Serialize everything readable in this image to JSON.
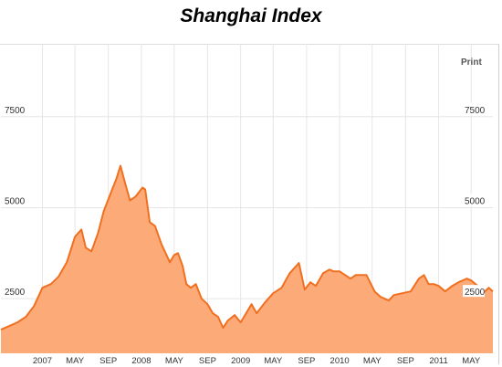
{
  "title": "Shanghai Index",
  "print_label": "Print",
  "chart_data": {
    "type": "area",
    "title": "Shanghai Index",
    "xlabel": "",
    "ylabel": "",
    "ylim": [
      1000,
      9500
    ],
    "xlim": [
      "2006-08-01",
      "2011-07-20"
    ],
    "grid": true,
    "legend": "none",
    "y_ticks_left": [
      "7500",
      "5000",
      "2500"
    ],
    "y_ticks_right": [
      "7500",
      "5000",
      "2500"
    ],
    "x_ticks": [
      {
        "label": "2007",
        "date": "2007-01-01"
      },
      {
        "label": "MAY",
        "date": "2007-05-01"
      },
      {
        "label": "SEP",
        "date": "2007-09-01"
      },
      {
        "label": "2008",
        "date": "2008-01-01"
      },
      {
        "label": "MAY",
        "date": "2008-05-01"
      },
      {
        "label": "SEP",
        "date": "2008-09-01"
      },
      {
        "label": "2009",
        "date": "2009-01-01"
      },
      {
        "label": "MAY",
        "date": "2009-05-01"
      },
      {
        "label": "SEP",
        "date": "2009-09-01"
      },
      {
        "label": "2010",
        "date": "2010-01-01"
      },
      {
        "label": "MAY",
        "date": "2010-05-01"
      },
      {
        "label": "SEP",
        "date": "2010-09-01"
      },
      {
        "label": "2011",
        "date": "2011-01-01"
      },
      {
        "label": "MAY",
        "date": "2011-05-01"
      }
    ],
    "colors": {
      "line": "#f07020",
      "fill": "#fcaa78",
      "grid": "#e6e6e6"
    },
    "series": [
      {
        "points": [
          [
            "2006-08-01",
            1650
          ],
          [
            "2006-09-01",
            1750
          ],
          [
            "2006-10-01",
            1850
          ],
          [
            "2006-11-01",
            2000
          ],
          [
            "2006-12-01",
            2300
          ],
          [
            "2007-01-01",
            2800
          ],
          [
            "2007-02-01",
            2900
          ],
          [
            "2007-03-01",
            3100
          ],
          [
            "2007-04-01",
            3500
          ],
          [
            "2007-05-01",
            4200
          ],
          [
            "2007-05-25",
            4400
          ],
          [
            "2007-06-10",
            3900
          ],
          [
            "2007-07-01",
            3800
          ],
          [
            "2007-07-25",
            4300
          ],
          [
            "2007-08-15",
            4900
          ],
          [
            "2007-09-10",
            5400
          ],
          [
            "2007-10-01",
            5800
          ],
          [
            "2007-10-16",
            6150
          ],
          [
            "2007-11-01",
            5700
          ],
          [
            "2007-11-20",
            5200
          ],
          [
            "2007-12-10",
            5300
          ],
          [
            "2008-01-05",
            5550
          ],
          [
            "2008-01-15",
            5500
          ],
          [
            "2008-02-01",
            4600
          ],
          [
            "2008-02-20",
            4500
          ],
          [
            "2008-03-15",
            4000
          ],
          [
            "2008-04-15",
            3500
          ],
          [
            "2008-05-01",
            3700
          ],
          [
            "2008-05-15",
            3750
          ],
          [
            "2008-06-01",
            3400
          ],
          [
            "2008-06-15",
            2900
          ],
          [
            "2008-07-01",
            2800
          ],
          [
            "2008-07-20",
            2900
          ],
          [
            "2008-08-10",
            2500
          ],
          [
            "2008-09-01",
            2350
          ],
          [
            "2008-09-20",
            2100
          ],
          [
            "2008-10-10",
            2000
          ],
          [
            "2008-10-28",
            1700
          ],
          [
            "2008-11-15",
            1900
          ],
          [
            "2008-12-10",
            2050
          ],
          [
            "2009-01-01",
            1850
          ],
          [
            "2009-02-10",
            2350
          ],
          [
            "2009-03-01",
            2100
          ],
          [
            "2009-04-01",
            2400
          ],
          [
            "2009-05-01",
            2650
          ],
          [
            "2009-06-01",
            2800
          ],
          [
            "2009-07-01",
            3200
          ],
          [
            "2009-08-04",
            3480
          ],
          [
            "2009-08-25",
            2750
          ],
          [
            "2009-09-15",
            2950
          ],
          [
            "2009-10-05",
            2850
          ],
          [
            "2009-11-01",
            3200
          ],
          [
            "2009-11-25",
            3300
          ],
          [
            "2009-12-10",
            3250
          ],
          [
            "2010-01-01",
            3250
          ],
          [
            "2010-02-10",
            3050
          ],
          [
            "2010-03-01",
            3150
          ],
          [
            "2010-04-10",
            3150
          ],
          [
            "2010-05-10",
            2700
          ],
          [
            "2010-06-01",
            2550
          ],
          [
            "2010-07-01",
            2450
          ],
          [
            "2010-07-20",
            2600
          ],
          [
            "2010-08-20",
            2650
          ],
          [
            "2010-09-20",
            2700
          ],
          [
            "2010-10-20",
            3050
          ],
          [
            "2010-11-08",
            3150
          ],
          [
            "2010-11-25",
            2900
          ],
          [
            "2010-12-15",
            2900
          ],
          [
            "2011-01-01",
            2850
          ],
          [
            "2011-01-25",
            2700
          ],
          [
            "2011-02-20",
            2850
          ],
          [
            "2011-03-15",
            2950
          ],
          [
            "2011-04-15",
            3050
          ],
          [
            "2011-05-01",
            3000
          ],
          [
            "2011-05-25",
            2850
          ],
          [
            "2011-06-20",
            2700
          ],
          [
            "2011-07-05",
            2800
          ],
          [
            "2011-07-20",
            2700
          ]
        ]
      }
    ]
  }
}
